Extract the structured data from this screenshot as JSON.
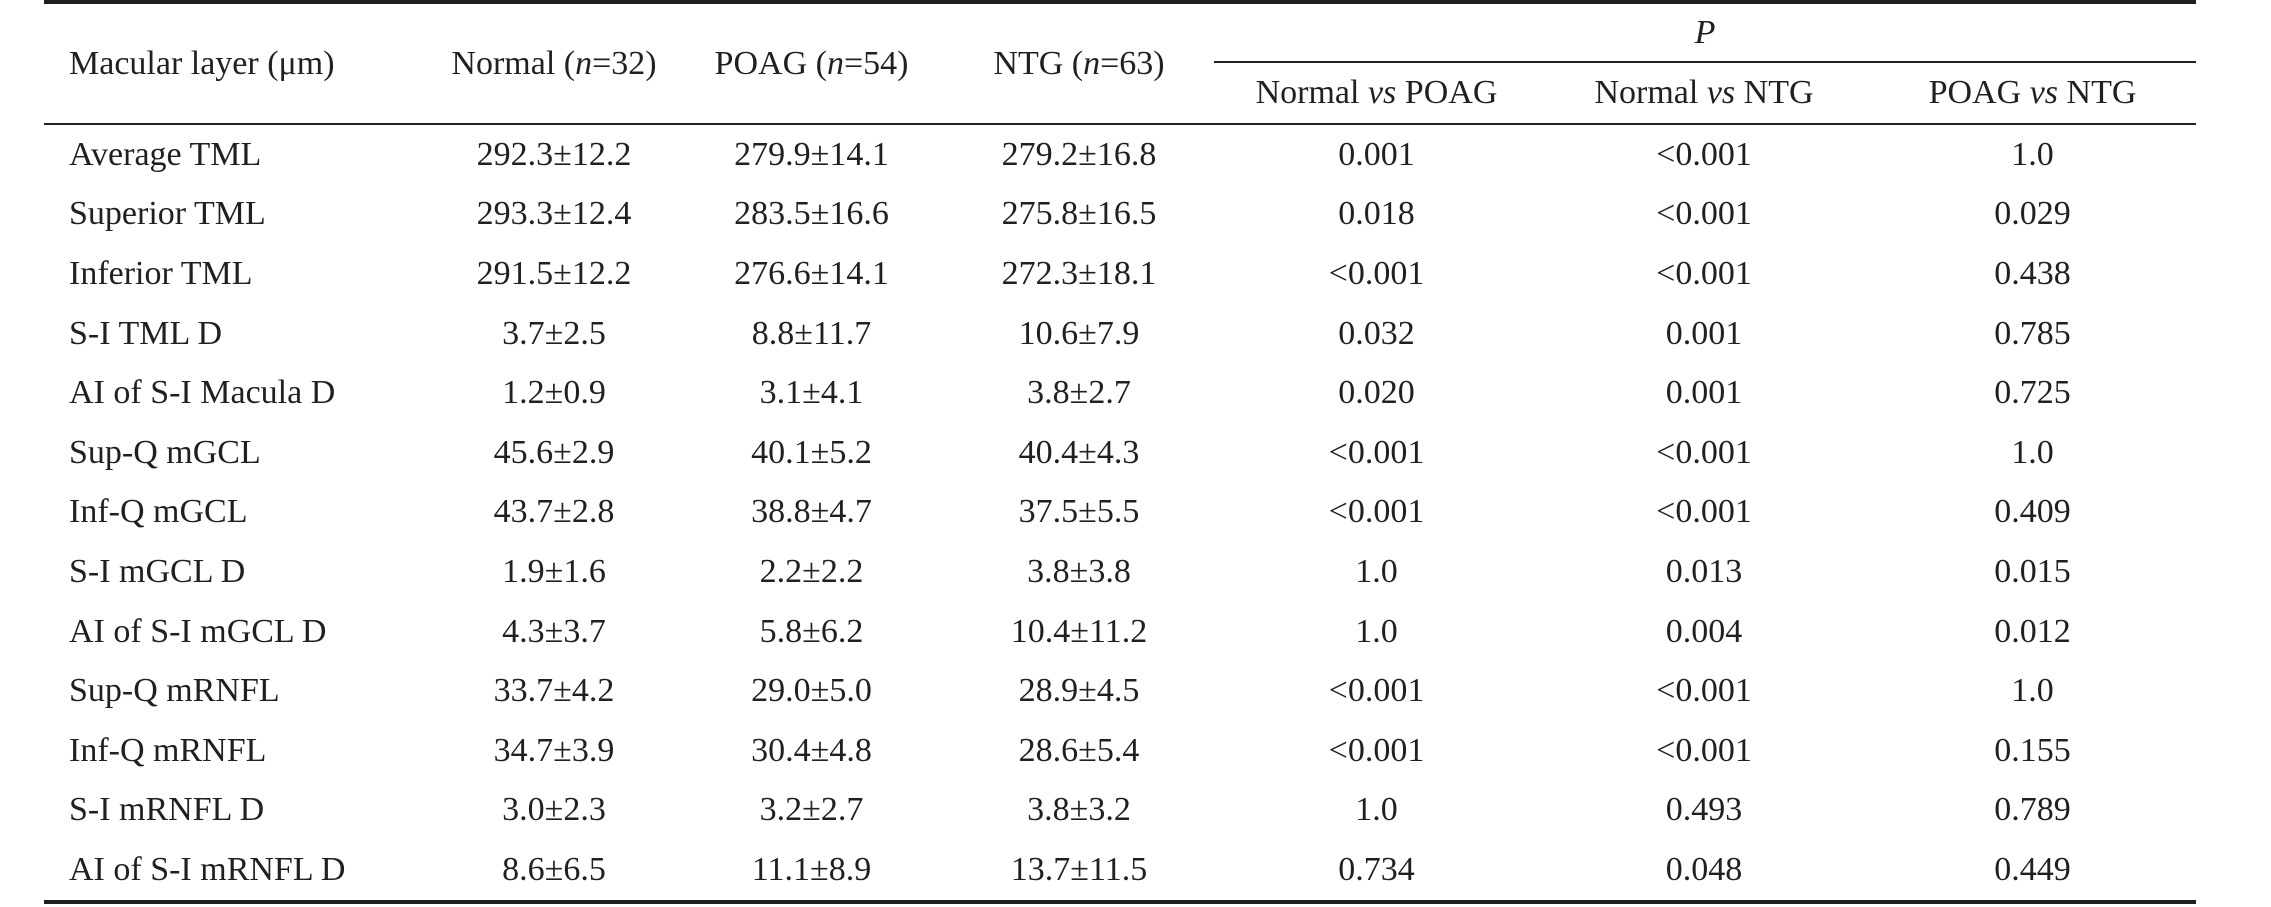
{
  "table": {
    "header": {
      "macular_layer": "Macular layer (μm)",
      "normal": {
        "prefix": "Normal (",
        "n_label": "n",
        "suffix": "=32)"
      },
      "poag": {
        "prefix": "POAG (",
        "n_label": "n",
        "suffix": "=54)"
      },
      "ntg": {
        "prefix": "NTG (",
        "n_label": "n",
        "suffix": "=63)"
      },
      "p_label": "P",
      "comparisons": [
        {
          "left": "Normal ",
          "vs": "vs",
          "right": " POAG"
        },
        {
          "left": "Normal ",
          "vs": "vs",
          "right": " NTG"
        },
        {
          "left": "POAG ",
          "vs": "vs",
          "right": " NTG"
        }
      ]
    },
    "rows": [
      [
        "Average TML",
        "292.3±12.2",
        "279.9±14.1",
        "279.2±16.8",
        "0.001",
        "<0.001",
        "1.0"
      ],
      [
        "Superior TML",
        "293.3±12.4",
        "283.5±16.6",
        "275.8±16.5",
        "0.018",
        "<0.001",
        "0.029"
      ],
      [
        "Inferior TML",
        "291.5±12.2",
        "276.6±14.1",
        "272.3±18.1",
        "<0.001",
        "<0.001",
        "0.438"
      ],
      [
        "S-I TML D",
        "3.7±2.5",
        "8.8±11.7",
        "10.6±7.9",
        "0.032",
        "0.001",
        "0.785"
      ],
      [
        "AI of S-I Macula D",
        "1.2±0.9",
        "3.1±4.1",
        "3.8±2.7",
        "0.020",
        "0.001",
        "0.725"
      ],
      [
        "Sup-Q mGCL",
        "45.6±2.9",
        "40.1±5.2",
        "40.4±4.3",
        "<0.001",
        "<0.001",
        "1.0"
      ],
      [
        "Inf-Q mGCL",
        "43.7±2.8",
        "38.8±4.7",
        "37.5±5.5",
        "<0.001",
        "<0.001",
        "0.409"
      ],
      [
        "S-I mGCL D",
        "1.9±1.6",
        "2.2±2.2",
        "3.8±3.8",
        "1.0",
        "0.013",
        "0.015"
      ],
      [
        "AI of S-I mGCL D",
        "4.3±3.7",
        "5.8±6.2",
        "10.4±11.2",
        "1.0",
        "0.004",
        "0.012"
      ],
      [
        "Sup-Q mRNFL",
        "33.7±4.2",
        "29.0±5.0",
        "28.9±4.5",
        "<0.001",
        "<0.001",
        "1.0"
      ],
      [
        "Inf-Q mRNFL",
        "34.7±3.9",
        "30.4±4.8",
        "28.6±5.4",
        "<0.001",
        "<0.001",
        "0.155"
      ],
      [
        "S-I mRNFL D",
        "3.0±2.3",
        "3.2±2.7",
        "3.8±3.2",
        "1.0",
        "0.493",
        "0.789"
      ],
      [
        "AI of S-I mRNFL D",
        "8.6±6.5",
        "11.1±8.9",
        "13.7±11.5",
        "0.734",
        "0.048",
        "0.449"
      ]
    ]
  }
}
